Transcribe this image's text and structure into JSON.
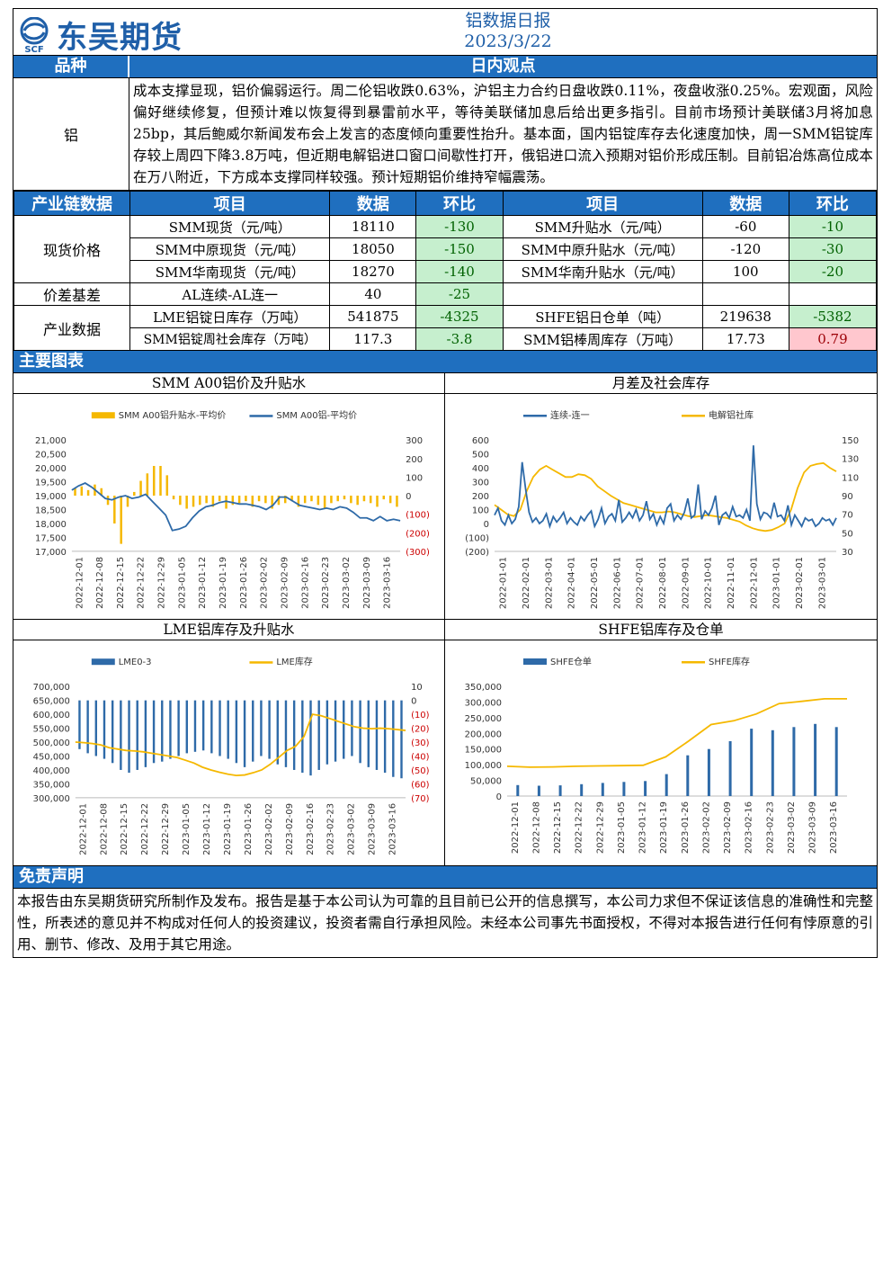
{
  "header": {
    "logo_badge": "SCF",
    "logo_text": "东吴期货",
    "title": "铝数据日报",
    "date": "2023/3/22"
  },
  "intraday": {
    "col1": "品种",
    "col2": "日内观点",
    "variety": "铝",
    "text": "成本支撑显现，铝价偏弱运行。周二伦铝收跌0.63%，沪铝主力合约日盘收跌0.11%，夜盘收涨0.25%。宏观面，风险偏好继续修复，但预计难以恢复得到暴雷前水平，等待美联储加息后给出更多指引。目前市场预计美联储3月将加息25bp，其后鲍威尔新闻发布会上发言的态度倾向重要性抬升。基本面，国内铝锭库存去化速度加快，周一SMM铝锭库存较上周四下降3.8万吨，但近期电解铝进口窗口间歇性打开，俄铝进口流入预期对铝价形成压制。目前铝冶炼高位成本在万八附近，下方成本支撑同样较强。预计短期铝价维持窄幅震荡。"
  },
  "table": {
    "headers": [
      "产业链数据",
      "项目",
      "数据",
      "环比",
      "项目",
      "数据",
      "环比"
    ],
    "groups": {
      "spot": "现货价格",
      "spread": "价差基差",
      "industry": "产业数据"
    },
    "rows": [
      {
        "item1": "SMM现货（元/吨）",
        "val1": "18110",
        "chg1": "-130",
        "item2": "SMM升贴水（元/吨）",
        "val2": "-60",
        "chg2": "-10"
      },
      {
        "item1": "SMM中原现货（元/吨）",
        "val1": "18050",
        "chg1": "-150",
        "item2": "SMM中原升贴水（元/吨）",
        "val2": "-120",
        "chg2": "-30"
      },
      {
        "item1": "SMM华南现货（元/吨）",
        "val1": "18270",
        "chg1": "-140",
        "item2": "SMM华南升贴水（元/吨）",
        "val2": "100",
        "chg2": "-20"
      },
      {
        "item1": "AL连续-AL连一",
        "val1": "40",
        "chg1": "-25",
        "item2": "",
        "val2": "",
        "chg2": ""
      },
      {
        "item1": "LME铝锭日库存（万吨）",
        "val1": "541875",
        "chg1": "-4325",
        "item2": "SHFE铝日仓单（吨）",
        "val2": "219638",
        "chg2": "-5382"
      },
      {
        "item1": "SMM铝锭周社会库存（万吨）",
        "val1": "117.3",
        "chg1": "-3.8",
        "item2": "SMM铝棒周库存（万吨）",
        "val2": "17.73",
        "chg2": "0.79"
      }
    ]
  },
  "charts_section": "主要图表",
  "colors": {
    "blue": "#2e6aa8",
    "gold": "#f5b800",
    "header": "#1f6fbf",
    "neg_bg": "#c6efce",
    "pos_bg": "#ffc7ce"
  },
  "chart_data": [
    {
      "type": "bar+line",
      "title": "SMM A00铝价及升贴水",
      "legend": [
        "SMM A00铝升贴水-平均价",
        "SMM A00铝-平均价"
      ],
      "x_ticks": [
        "2022-12-01",
        "2022-12-08",
        "2022-12-15",
        "2022-12-22",
        "2022-12-29",
        "2023-01-05",
        "2023-01-12",
        "2023-01-19",
        "2023-01-26",
        "2023-02-02",
        "2023-02-09",
        "2023-02-16",
        "2023-02-23",
        "2023-03-02",
        "2023-03-09",
        "2023-03-16"
      ],
      "y_left": [
        "21,000",
        "20,500",
        "20,000",
        "19,500",
        "19,000",
        "18,500",
        "18,000",
        "17,500",
        "17,000"
      ],
      "y_left_range": [
        17000,
        21000
      ],
      "y_right": [
        "300",
        "200",
        "100",
        "0",
        "(100)",
        "(200)",
        "(300)"
      ],
      "y_right_range": [
        -300,
        300
      ],
      "price": [
        19200,
        19350,
        19450,
        19300,
        19100,
        18900,
        18850,
        18950,
        19000,
        18900,
        18950,
        19050,
        18800,
        18550,
        18300,
        17750,
        17800,
        17900,
        18200,
        18450,
        18600,
        18650,
        18750,
        18800,
        18750,
        18700,
        18700,
        18650,
        18600,
        18500,
        18650,
        18950,
        18950,
        18800,
        18650,
        18600,
        18550,
        18500,
        18550,
        18500,
        18600,
        18550,
        18400,
        18200,
        18200,
        18100,
        18250,
        18100,
        18150,
        18100
      ],
      "premium": [
        40,
        50,
        30,
        60,
        40,
        -50,
        -150,
        -260,
        -60,
        20,
        80,
        120,
        160,
        160,
        110,
        -20,
        -50,
        -70,
        -60,
        -50,
        -40,
        -60,
        -30,
        -70,
        -50,
        -40,
        -30,
        -60,
        -30,
        -40,
        -70,
        -50,
        -40,
        -30,
        -60,
        -40,
        -30,
        -50,
        -70,
        -40,
        -30,
        -20,
        -40,
        -50,
        -30,
        -40,
        -60,
        -20,
        -40,
        -60
      ]
    },
    {
      "type": "line",
      "title": "月差及社会库存",
      "legend": [
        "连续-连一",
        "电解铝社库"
      ],
      "x_ticks": [
        "2022-01-01",
        "2022-02-01",
        "2022-03-01",
        "2022-04-01",
        "2022-05-01",
        "2022-06-01",
        "2022-07-01",
        "2022-08-01",
        "2022-09-01",
        "2022-10-01",
        "2022-11-01",
        "2022-12-01",
        "2023-01-01",
        "2023-02-01",
        "2023-03-01"
      ],
      "y_left": [
        "600",
        "500",
        "400",
        "300",
        "200",
        "100",
        "0",
        "(100)",
        "(200)"
      ],
      "y_left_range": [
        -200,
        600
      ],
      "y_right": [
        "150",
        "130",
        "110",
        "90",
        "70",
        "50",
        "30"
      ],
      "y_right_range": [
        30,
        150
      ],
      "spread": [
        60,
        110,
        20,
        -10,
        60,
        0,
        30,
        120,
        440,
        250,
        80,
        10,
        40,
        0,
        20,
        70,
        -20,
        50,
        10,
        40,
        80,
        0,
        40,
        10,
        -10,
        50,
        20,
        60,
        90,
        -20,
        30,
        110,
        0,
        50,
        70,
        20,
        170,
        10,
        40,
        80,
        40,
        100,
        20,
        60,
        160,
        30,
        70,
        -10,
        50,
        0,
        110,
        140,
        20,
        60,
        30,
        80,
        180,
        40,
        60,
        280,
        30,
        90,
        60,
        110,
        200,
        -10,
        60,
        80,
        40,
        120,
        50,
        60,
        40,
        100,
        20,
        560,
        140,
        30,
        80,
        70,
        40,
        150,
        50,
        60,
        20,
        130,
        -10,
        60,
        20,
        -20,
        40,
        20,
        30,
        -20,
        0,
        40,
        20,
        30,
        -10,
        40
      ],
      "stock": [
        80,
        75,
        70,
        68,
        75,
        95,
        110,
        118,
        122,
        118,
        114,
        110,
        110,
        113,
        112,
        108,
        100,
        95,
        90,
        86,
        82,
        80,
        78,
        76,
        74,
        72,
        72,
        73,
        72,
        70,
        68,
        67,
        68,
        69,
        68,
        67,
        66,
        64,
        62,
        58,
        55,
        53,
        52,
        53,
        56,
        60,
        75,
        98,
        115,
        122,
        124,
        125,
        120,
        116
      ]
    },
    {
      "type": "bar+line",
      "title": "LME铝库存及升贴水",
      "legend": [
        "LME0-3",
        "LME库存"
      ],
      "x_ticks": [
        "2022-12-01",
        "2022-12-08",
        "2022-12-15",
        "2022-12-22",
        "2022-12-29",
        "2023-01-05",
        "2023-01-12",
        "2023-01-19",
        "2023-01-26",
        "2023-02-02",
        "2023-02-09",
        "2023-02-16",
        "2023-02-23",
        "2023-03-02",
        "2023-03-09",
        "2023-03-16"
      ],
      "y_left": [
        "700,000",
        "650,000",
        "600,000",
        "550,000",
        "500,000",
        "450,000",
        "400,000",
        "350,000",
        "300,000"
      ],
      "y_left_range": [
        300000,
        700000
      ],
      "y_right": [
        "10",
        "0",
        "(10)",
        "(20)",
        "(30)",
        "(40)",
        "(50)",
        "(60)",
        "(70)"
      ],
      "y_right_range": [
        -70,
        10
      ],
      "stock": [
        500000,
        498000,
        495000,
        490000,
        480000,
        475000,
        470000,
        468000,
        465000,
        460000,
        455000,
        450000,
        445000,
        435000,
        425000,
        410000,
        400000,
        392000,
        385000,
        380000,
        382000,
        390000,
        400000,
        420000,
        445000,
        470000,
        485000,
        520000,
        600000,
        595000,
        585000,
        575000,
        565000,
        555000,
        550000,
        548000,
        550000,
        548000,
        545000,
        542000
      ],
      "spread": [
        -35,
        -38,
        -40,
        -42,
        -45,
        -50,
        -52,
        -50,
        -48,
        -45,
        -44,
        -42,
        -40,
        -38,
        -37,
        -36,
        -38,
        -40,
        -42,
        -45,
        -48,
        -44,
        -40,
        -42,
        -46,
        -48,
        -50,
        -52,
        -54,
        -50,
        -46,
        -44,
        -42,
        -40,
        -45,
        -48,
        -50,
        -52,
        -55,
        -56
      ]
    },
    {
      "type": "bar+line",
      "title": "SHFE铝库存及仓单",
      "legend": [
        "SHFE仓单",
        "SHFE库存"
      ],
      "x_ticks": [
        "2022-12-01",
        "2022-12-08",
        "2022-12-15",
        "2022-12-22",
        "2022-12-29",
        "2023-01-05",
        "2023-01-12",
        "2023-01-19",
        "2023-01-26",
        "2023-02-02",
        "2023-02-09",
        "2023-02-16",
        "2023-02-23",
        "2023-03-02",
        "2023-03-09",
        "2023-03-16"
      ],
      "y_left": [
        "350,000",
        "300,000",
        "250,000",
        "200,000",
        "150,000",
        "100,000",
        "50,000",
        "0"
      ],
      "y_left_range": [
        0,
        350000
      ],
      "stock": [
        95000,
        92000,
        93000,
        95000,
        96000,
        97000,
        98000,
        125000,
        175000,
        228000,
        240000,
        262000,
        295000,
        302000,
        310000,
        310000
      ],
      "warrant": [
        35000,
        33000,
        34000,
        38000,
        42000,
        45000,
        48000,
        70000,
        130000,
        150000,
        175000,
        215000,
        210000,
        220000,
        230000,
        220000
      ]
    }
  ],
  "disclaimer": {
    "title": "免责声明",
    "text": "本报告由东吴期货研究所制作及发布。报告是基于本公司认为可靠的且目前已公开的信息撰写，本公司力求但不保证该信息的准确性和完整性，所表述的意见并不构成对任何人的投资建议，投资者需自行承担风险。未经本公司事先书面授权，不得对本报告进行任何有悖原意的引用、删节、修改、及用于其它用途。"
  }
}
